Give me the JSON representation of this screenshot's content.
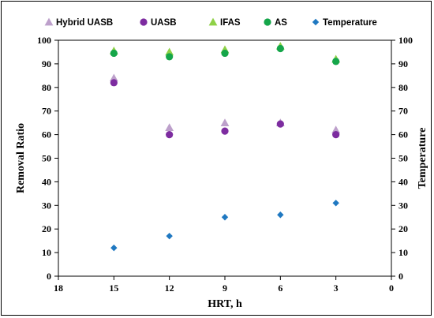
{
  "chart_data": {
    "type": "scatter",
    "xlabel": "HRT, h",
    "ylabel": "Removal Ratio",
    "y2label": "Temperature",
    "xlim": [
      18,
      0
    ],
    "x_reversed": true,
    "ylim": [
      0,
      100
    ],
    "y2lim": [
      0,
      100
    ],
    "x_ticks": [
      18,
      15,
      12,
      9,
      6,
      3,
      0
    ],
    "y_ticks": [
      0,
      10,
      20,
      30,
      40,
      50,
      60,
      70,
      80,
      90,
      100
    ],
    "grid": false,
    "legend_position": "top",
    "series": [
      {
        "name": "Hybrid UASB",
        "marker": "triangle",
        "color": "#bda0cb",
        "axis": "left",
        "points": [
          [
            15,
            84
          ],
          [
            12,
            63
          ],
          [
            9,
            65
          ],
          [
            6,
            65
          ],
          [
            3,
            62
          ]
        ]
      },
      {
        "name": "UASB",
        "marker": "circle",
        "color": "#7d2ca0",
        "axis": "left",
        "points": [
          [
            15,
            82
          ],
          [
            12,
            60
          ],
          [
            9,
            61.5
          ],
          [
            6,
            64.5
          ],
          [
            3,
            60
          ]
        ]
      },
      {
        "name": "IFAS",
        "marker": "triangle",
        "color": "#8fd147",
        "axis": "left",
        "points": [
          [
            15,
            95.5
          ],
          [
            12,
            95
          ],
          [
            9,
            96
          ],
          [
            6,
            97.5
          ],
          [
            3,
            92
          ]
        ]
      },
      {
        "name": "AS",
        "marker": "circle",
        "color": "#15a64a",
        "axis": "left",
        "points": [
          [
            15,
            94.5
          ],
          [
            12,
            93
          ],
          [
            9,
            94.5
          ],
          [
            6,
            96.5
          ],
          [
            3,
            91
          ]
        ]
      },
      {
        "name": "Temperature",
        "marker": "diamond",
        "color": "#1f78c1",
        "axis": "right",
        "points": [
          [
            15,
            12
          ],
          [
            12,
            17
          ],
          [
            9,
            25
          ],
          [
            6,
            26
          ],
          [
            3,
            31
          ]
        ]
      }
    ]
  }
}
